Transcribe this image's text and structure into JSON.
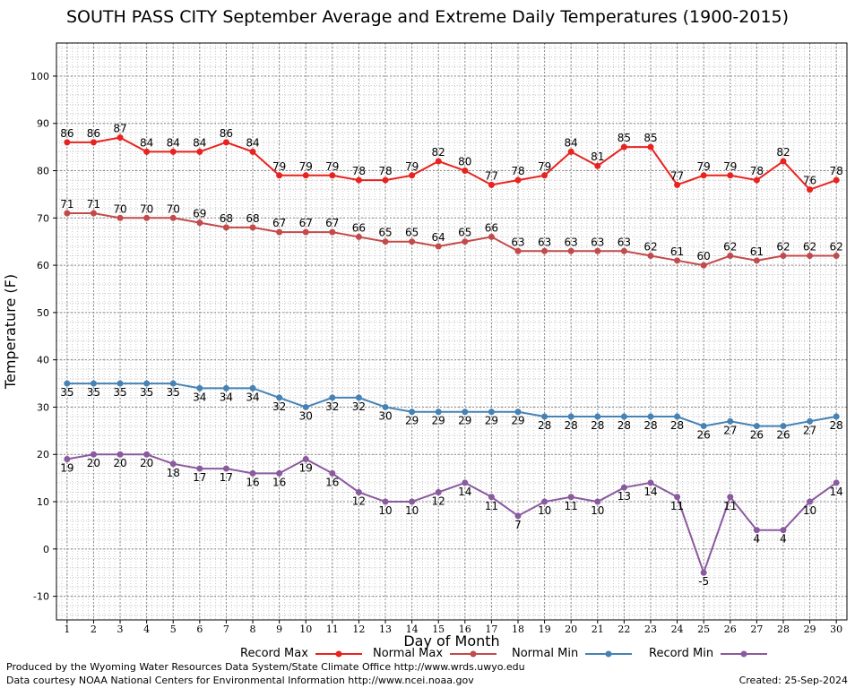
{
  "chart_data": {
    "type": "line",
    "title": "SOUTH PASS CITY September Average and Extreme Daily Temperatures (1900-2015)",
    "xlabel": "Day of Month",
    "ylabel": "Temperature (F)",
    "x": [
      1,
      2,
      3,
      4,
      5,
      6,
      7,
      8,
      9,
      10,
      11,
      12,
      13,
      14,
      15,
      16,
      17,
      18,
      19,
      20,
      21,
      22,
      23,
      24,
      25,
      26,
      27,
      28,
      29,
      30
    ],
    "xlim": [
      0.6,
      30.4
    ],
    "ylim": [
      -15,
      107
    ],
    "yticks": [
      -10,
      0,
      10,
      20,
      30,
      40,
      50,
      60,
      70,
      80,
      90,
      100
    ],
    "grid": true,
    "legend_position": "bottom",
    "series": [
      {
        "name": "Record Max",
        "color": "#e8231f",
        "label_position": "above",
        "values": [
          86,
          86,
          87,
          84,
          84,
          84,
          86,
          84,
          79,
          79,
          79,
          78,
          78,
          79,
          82,
          80,
          77,
          78,
          79,
          84,
          81,
          85,
          85,
          77,
          79,
          79,
          78,
          82,
          76,
          78
        ]
      },
      {
        "name": "Normal Max",
        "color": "#c34a4a",
        "label_position": "above",
        "values": [
          71,
          71,
          70,
          70,
          70,
          69,
          68,
          68,
          67,
          67,
          67,
          66,
          65,
          65,
          64,
          65,
          66,
          63,
          63,
          63,
          63,
          63,
          62,
          61,
          60,
          62,
          61,
          62,
          62,
          62
        ]
      },
      {
        "name": "Normal Min",
        "color": "#4682b4",
        "label_position": "below",
        "values": [
          35,
          35,
          35,
          35,
          35,
          34,
          34,
          34,
          32,
          30,
          32,
          32,
          30,
          29,
          29,
          29,
          29,
          29,
          28,
          28,
          28,
          28,
          28,
          28,
          26,
          27,
          26,
          26,
          27,
          28
        ]
      },
      {
        "name": "Record Min",
        "color": "#8a5a9e",
        "label_position": "below",
        "values": [
          19,
          20,
          20,
          20,
          18,
          17,
          17,
          16,
          16,
          19,
          16,
          12,
          10,
          10,
          12,
          14,
          11,
          7,
          10,
          11,
          10,
          13,
          14,
          11,
          -5,
          11,
          4,
          4,
          10,
          14
        ]
      }
    ]
  },
  "footer": {
    "produced_by": "Produced by the Wyoming Water Resources Data System/State Climate Office http://www.wrds.uwyo.edu",
    "courtesy": "Data courtesy NOAA National Centers for Environmental Information http://www.ncei.noaa.gov",
    "created": "Created:  25-Sep-2024"
  }
}
